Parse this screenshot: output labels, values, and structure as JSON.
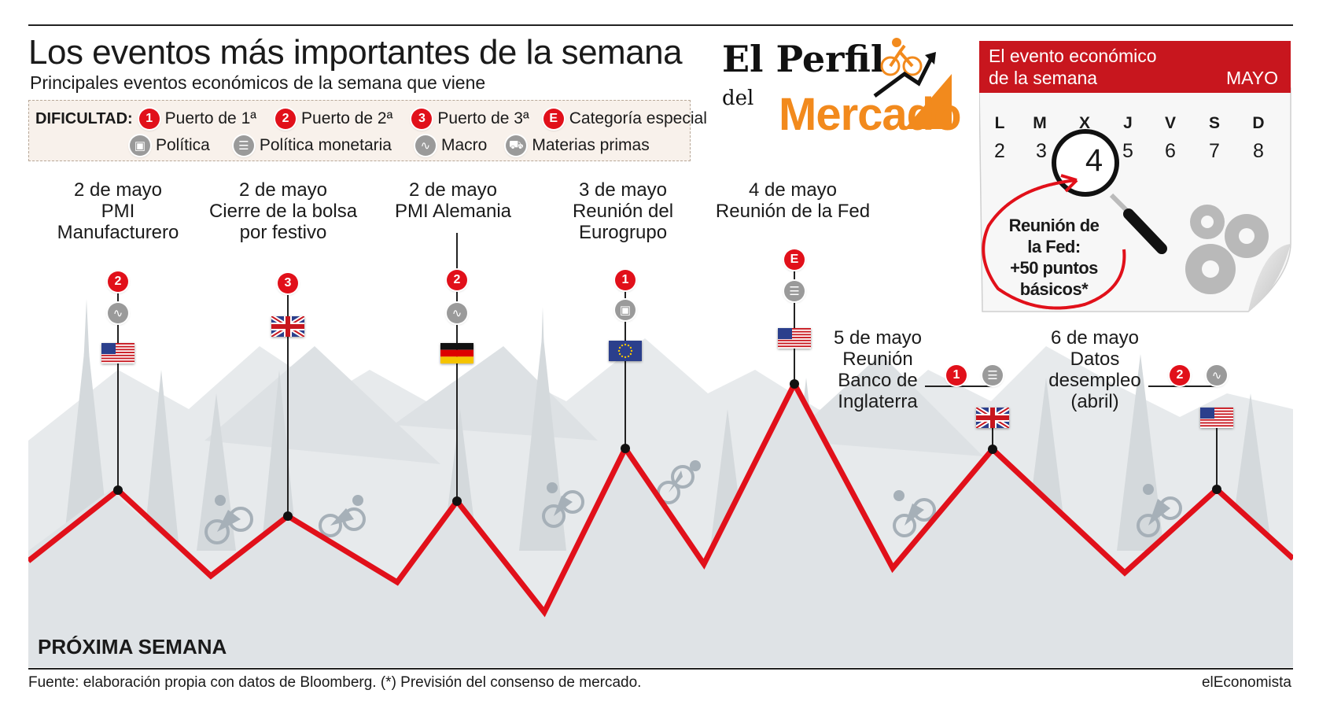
{
  "header": {
    "title": "Los eventos más importantes de la semana",
    "subtitle": "Principales eventos económicos de la semana que viene"
  },
  "legend": {
    "label": "DIFICULTAD:",
    "difficulty": [
      {
        "badge": "1",
        "text": "Puerto de 1ª"
      },
      {
        "badge": "2",
        "text": "Puerto de 2ª"
      },
      {
        "badge": "3",
        "text": "Puerto de 3ª"
      },
      {
        "badge": "E",
        "text": "Categoría especial"
      }
    ],
    "categories": [
      {
        "icon": "politics-icon",
        "text": "Política"
      },
      {
        "icon": "monetary-policy-icon",
        "text": "Política monetaria"
      },
      {
        "icon": "macro-icon",
        "text": "Macro"
      },
      {
        "icon": "commodities-icon",
        "text": "Materias primas"
      }
    ]
  },
  "brand": {
    "line1": "El Perfil",
    "line2": "del",
    "line3": "Mercado"
  },
  "calendar": {
    "header_line1": "El evento económico",
    "header_line2": "de la semana",
    "month": "MAYO",
    "day_names": [
      "L",
      "M",
      "X",
      "J",
      "V",
      "S",
      "D"
    ],
    "day_numbers": [
      "2",
      "3",
      "4",
      "5",
      "6",
      "7",
      "8"
    ],
    "highlight": "4",
    "note_lines": [
      "Reunión de",
      "la Fed:",
      "+50 puntos",
      "básicos*"
    ]
  },
  "events": [
    {
      "lines": [
        "2 de mayo",
        "PMI",
        "Manufacturero"
      ],
      "badge": "2",
      "category": "macro-icon",
      "flag": "us"
    },
    {
      "lines": [
        "2 de mayo",
        "Cierre de la bolsa",
        "por festivo"
      ],
      "badge": "3",
      "category": "",
      "flag": "uk"
    },
    {
      "lines": [
        "2 de mayo",
        "PMI Alemania"
      ],
      "badge": "2",
      "category": "macro-icon",
      "flag": "de"
    },
    {
      "lines": [
        "3 de mayo",
        "Reunión del",
        "Eurogrupo"
      ],
      "badge": "1",
      "category": "politics-icon",
      "flag": "eu"
    },
    {
      "lines": [
        "4 de mayo",
        "Reunión de la Fed"
      ],
      "badge": "E",
      "category": "monetary-policy-icon",
      "flag": "us"
    },
    {
      "lines": [
        "5 de mayo",
        "Reunión",
        "Banco de",
        "Inglaterra"
      ],
      "badge": "1",
      "category": "monetary-policy-icon",
      "flag": "uk"
    },
    {
      "lines": [
        "6 de mayo",
        "Datos",
        "desempleo",
        "(abril)"
      ],
      "badge": "2",
      "category": "macro-icon",
      "flag": "us"
    }
  ],
  "footer": {
    "section": "PRÓXIMA SEMANA",
    "source": "Fuente: elaboración propia con datos de Bloomberg. (*) Previsión del consenso de mercado.",
    "credit": "elEconomista"
  },
  "colors": {
    "accent_red": "#e1101a",
    "brand_orange": "#f28a1d",
    "calendar_red": "#c8161e",
    "mountain_gray": "#dfe3e6"
  }
}
